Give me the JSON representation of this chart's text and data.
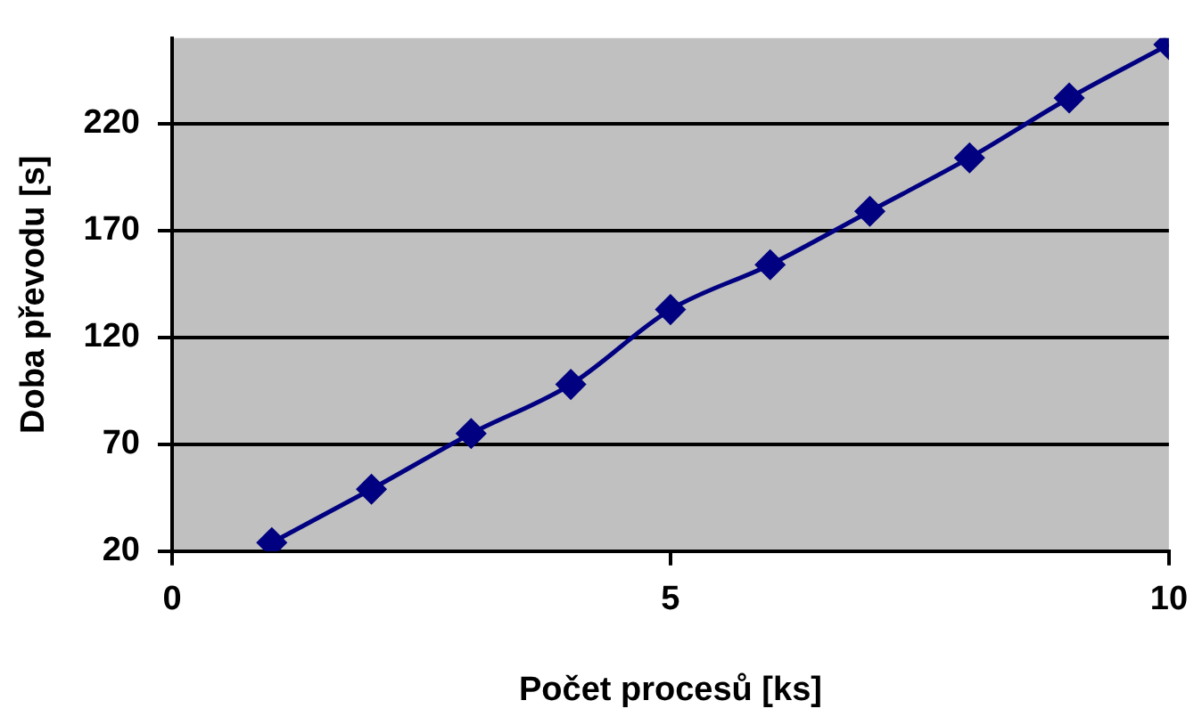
{
  "chart_data": {
    "type": "line",
    "xlabel": "Počet procesů [ks]",
    "ylabel": "Doba převodu [s]",
    "x": [
      1,
      2,
      3,
      4,
      5,
      6,
      7,
      8,
      9,
      10
    ],
    "series": [
      {
        "color": "#000080",
        "values": [
          24,
          49,
          75,
          98,
          133,
          154,
          179,
          204,
          232,
          257
        ]
      }
    ],
    "xlim": [
      0,
      10
    ],
    "xticks": [
      0,
      5,
      10
    ],
    "ylim": [
      20,
      260
    ],
    "yticks": [
      20,
      70,
      120,
      170,
      220
    ],
    "grid": "y",
    "legend": false,
    "marker": "diamond",
    "line_style": "solid"
  }
}
